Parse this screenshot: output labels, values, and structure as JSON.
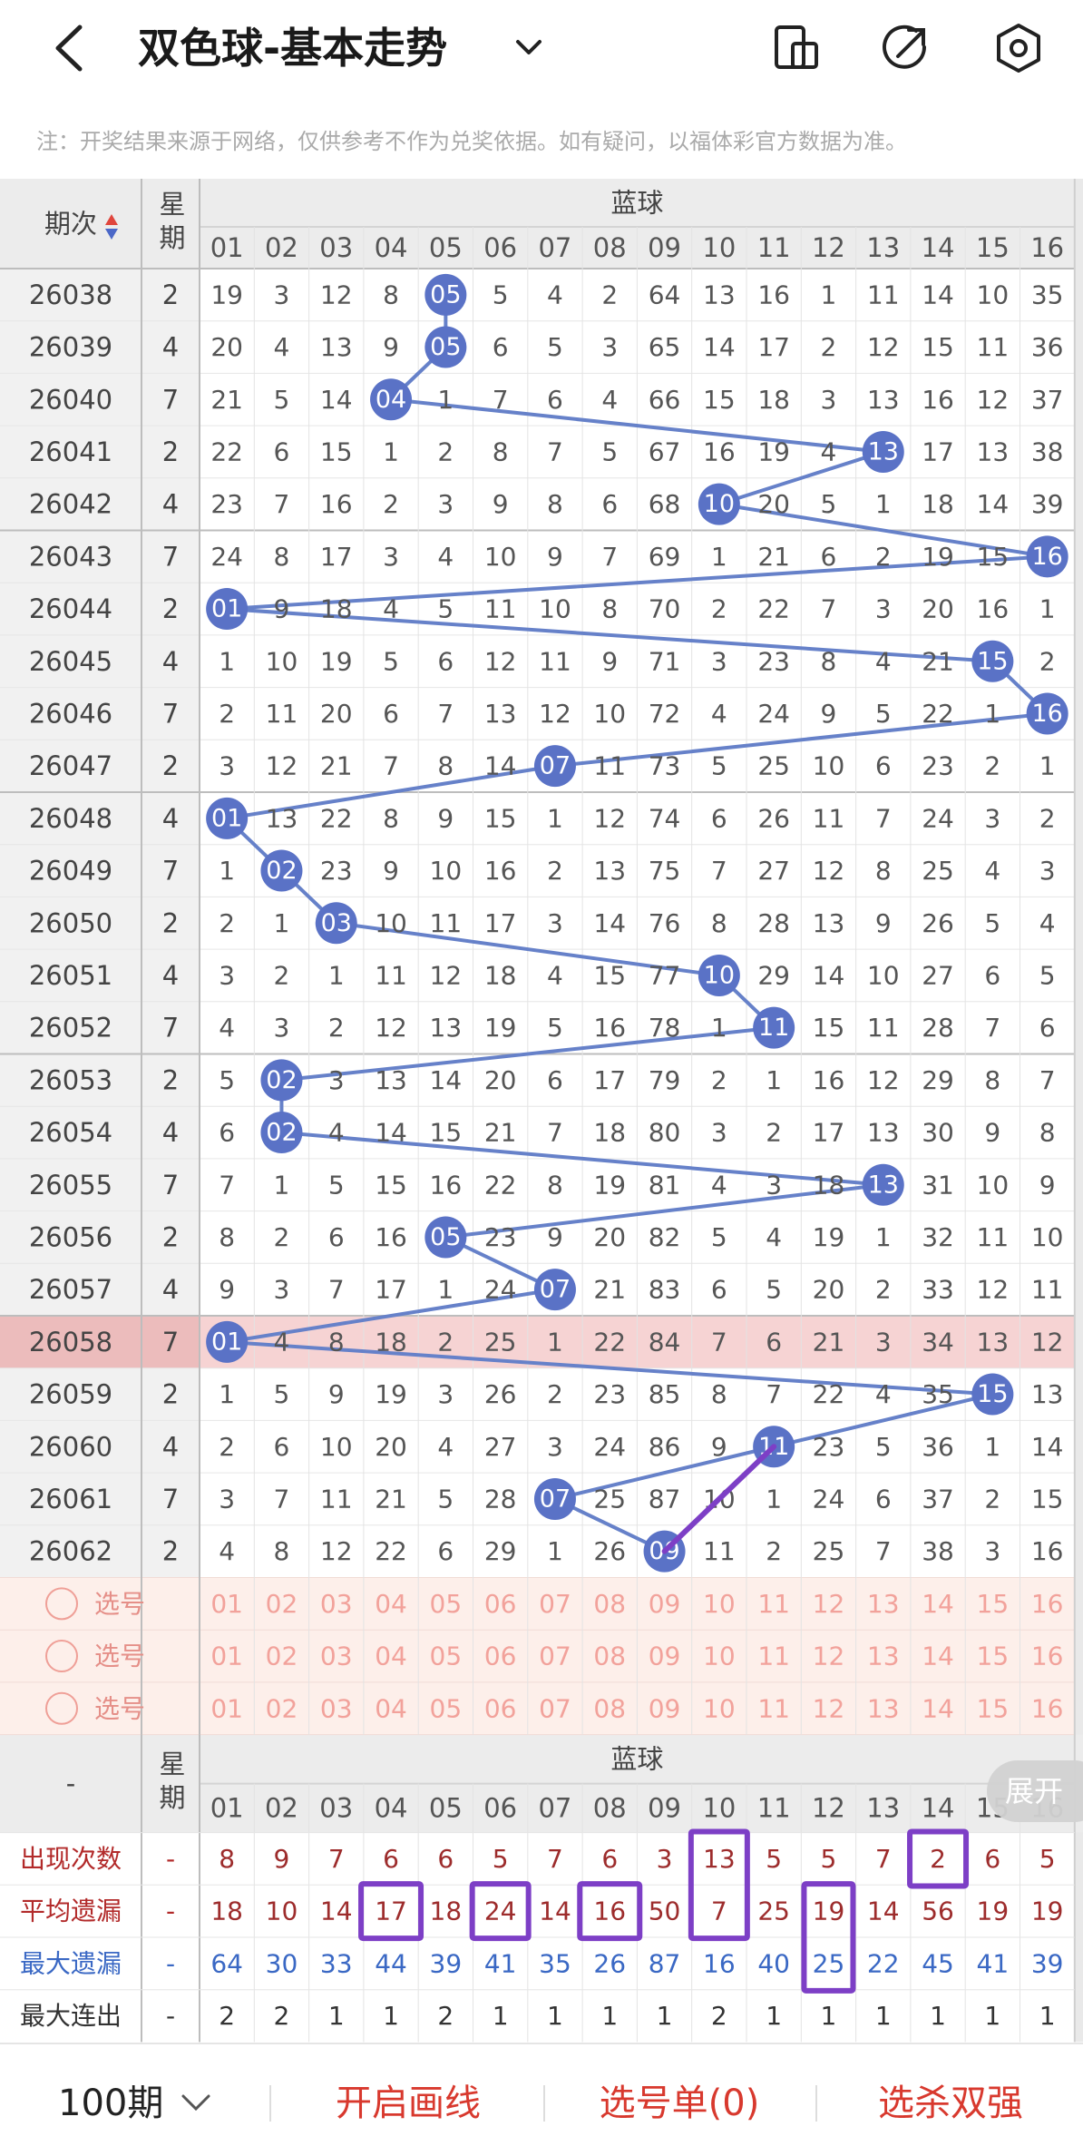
{
  "header": {
    "title": "双色球-基本走势",
    "notice": "注：开奖结果来源于网络，仅供参考不作为兑奖依据。如有疑问，以福体彩官方数据为准。"
  },
  "table": {
    "period_header": "期次",
    "weekday_header": "星期",
    "section": "蓝球",
    "columns": [
      "01",
      "02",
      "03",
      "04",
      "05",
      "06",
      "07",
      "08",
      "09",
      "10",
      "11",
      "12",
      "13",
      "14",
      "15",
      "16"
    ],
    "rows": [
      {
        "period": 26038,
        "weekday": 2,
        "values": [
          19,
          3,
          12,
          8,
          "05",
          5,
          4,
          2,
          64,
          13,
          16,
          1,
          11,
          14,
          10,
          35
        ]
      },
      {
        "period": 26039,
        "weekday": 4,
        "values": [
          20,
          4,
          13,
          9,
          "05",
          6,
          5,
          3,
          65,
          14,
          17,
          2,
          12,
          15,
          11,
          36
        ]
      },
      {
        "period": 26040,
        "weekday": 7,
        "values": [
          21,
          5,
          14,
          "04",
          1,
          7,
          6,
          4,
          66,
          15,
          18,
          3,
          13,
          16,
          12,
          37
        ]
      },
      {
        "period": 26041,
        "weekday": 2,
        "values": [
          22,
          6,
          15,
          1,
          2,
          8,
          7,
          5,
          67,
          16,
          19,
          4,
          "13",
          17,
          13,
          38
        ]
      },
      {
        "period": 26042,
        "weekday": 4,
        "values": [
          23,
          7,
          16,
          2,
          3,
          9,
          8,
          6,
          68,
          "10",
          20,
          5,
          1,
          18,
          14,
          39
        ]
      },
      {
        "period": 26043,
        "weekday": 7,
        "values": [
          24,
          8,
          17,
          3,
          4,
          10,
          9,
          7,
          69,
          1,
          21,
          6,
          2,
          19,
          15,
          "16"
        ]
      },
      {
        "period": 26044,
        "weekday": 2,
        "values": [
          "01",
          9,
          18,
          4,
          5,
          11,
          10,
          8,
          70,
          2,
          22,
          7,
          3,
          20,
          16,
          1
        ]
      },
      {
        "period": 26045,
        "weekday": 4,
        "values": [
          1,
          10,
          19,
          5,
          6,
          12,
          11,
          9,
          71,
          3,
          23,
          8,
          4,
          21,
          "15",
          2
        ]
      },
      {
        "period": 26046,
        "weekday": 7,
        "values": [
          2,
          11,
          20,
          6,
          7,
          13,
          12,
          10,
          72,
          4,
          24,
          9,
          5,
          22,
          1,
          "16"
        ]
      },
      {
        "period": 26047,
        "weekday": 2,
        "values": [
          3,
          12,
          21,
          7,
          8,
          14,
          "07",
          11,
          73,
          5,
          25,
          10,
          6,
          23,
          2,
          1
        ]
      },
      {
        "period": 26048,
        "weekday": 4,
        "values": [
          "01",
          13,
          22,
          8,
          9,
          15,
          1,
          12,
          74,
          6,
          26,
          11,
          7,
          24,
          3,
          2
        ]
      },
      {
        "period": 26049,
        "weekday": 7,
        "values": [
          1,
          "02",
          23,
          9,
          10,
          16,
          2,
          13,
          75,
          7,
          27,
          12,
          8,
          25,
          4,
          3
        ]
      },
      {
        "period": 26050,
        "weekday": 2,
        "values": [
          2,
          1,
          "03",
          10,
          11,
          17,
          3,
          14,
          76,
          8,
          28,
          13,
          9,
          26,
          5,
          4
        ]
      },
      {
        "period": 26051,
        "weekday": 4,
        "values": [
          3,
          2,
          1,
          11,
          12,
          18,
          4,
          15,
          77,
          "10",
          29,
          14,
          10,
          27,
          6,
          5
        ]
      },
      {
        "period": 26052,
        "weekday": 7,
        "values": [
          4,
          3,
          2,
          12,
          13,
          19,
          5,
          16,
          78,
          1,
          "11",
          15,
          11,
          28,
          7,
          6
        ]
      },
      {
        "period": 26053,
        "weekday": 2,
        "values": [
          5,
          "02",
          3,
          13,
          14,
          20,
          6,
          17,
          79,
          2,
          1,
          16,
          12,
          29,
          8,
          7
        ]
      },
      {
        "period": 26054,
        "weekday": 4,
        "values": [
          6,
          "02",
          4,
          14,
          15,
          21,
          7,
          18,
          80,
          3,
          2,
          17,
          13,
          30,
          9,
          8
        ]
      },
      {
        "period": 26055,
        "weekday": 7,
        "values": [
          7,
          1,
          5,
          15,
          16,
          22,
          8,
          19,
          81,
          4,
          3,
          18,
          "13",
          31,
          10,
          9
        ]
      },
      {
        "period": 26056,
        "weekday": 2,
        "values": [
          8,
          2,
          6,
          16,
          "05",
          23,
          9,
          20,
          82,
          5,
          4,
          19,
          1,
          32,
          11,
          10
        ]
      },
      {
        "period": 26057,
        "weekday": 4,
        "values": [
          9,
          3,
          7,
          17,
          1,
          24,
          "07",
          21,
          83,
          6,
          5,
          20,
          2,
          33,
          12,
          11
        ]
      },
      {
        "period": 26058,
        "weekday": 7,
        "values": [
          "01",
          4,
          8,
          18,
          2,
          25,
          1,
          22,
          84,
          7,
          6,
          21,
          3,
          34,
          13,
          12
        ]
      },
      {
        "period": 26059,
        "weekday": 2,
        "values": [
          1,
          5,
          9,
          19,
          3,
          26,
          2,
          23,
          85,
          8,
          7,
          22,
          4,
          35,
          "15",
          13
        ]
      },
      {
        "period": 26060,
        "weekday": 4,
        "values": [
          2,
          6,
          10,
          20,
          4,
          27,
          3,
          24,
          86,
          9,
          "11",
          23,
          5,
          36,
          1,
          14
        ]
      },
      {
        "period": 26061,
        "weekday": 7,
        "values": [
          3,
          7,
          11,
          21,
          5,
          28,
          "07",
          25,
          87,
          10,
          1,
          24,
          6,
          37,
          2,
          15
        ]
      },
      {
        "period": 26062,
        "weekday": 2,
        "values": [
          4,
          8,
          12,
          22,
          6,
          29,
          1,
          26,
          "09",
          11,
          2,
          25,
          7,
          38,
          3,
          16
        ]
      }
    ],
    "pick_rows": [
      "选号",
      "选号",
      "选号"
    ]
  },
  "stats": {
    "period_header": "-",
    "weekday_header": "星期",
    "section": "蓝球",
    "expand": "展开",
    "rows": [
      {
        "label": "出现次数",
        "weekday": "-",
        "values": [
          8,
          9,
          7,
          6,
          6,
          5,
          7,
          6,
          3,
          13,
          5,
          5,
          7,
          2,
          6,
          5
        ]
      },
      {
        "label": "平均遗漏",
        "weekday": "-",
        "values": [
          18,
          10,
          14,
          17,
          18,
          24,
          14,
          16,
          50,
          7,
          25,
          19,
          14,
          56,
          19,
          19
        ]
      },
      {
        "label": "最大遗漏",
        "weekday": "-",
        "values": [
          64,
          30,
          33,
          44,
          39,
          41,
          35,
          26,
          87,
          16,
          40,
          25,
          22,
          45,
          41,
          39
        ]
      },
      {
        "label": "最大连出",
        "weekday": "-",
        "values": [
          2,
          2,
          1,
          1,
          2,
          1,
          1,
          1,
          1,
          2,
          1,
          1,
          1,
          1,
          1,
          1
        ]
      }
    ]
  },
  "footer": {
    "periods": "100期",
    "draw_line": "开启画线",
    "pick_list": "选号单(0)",
    "filter": "选杀双强"
  }
}
